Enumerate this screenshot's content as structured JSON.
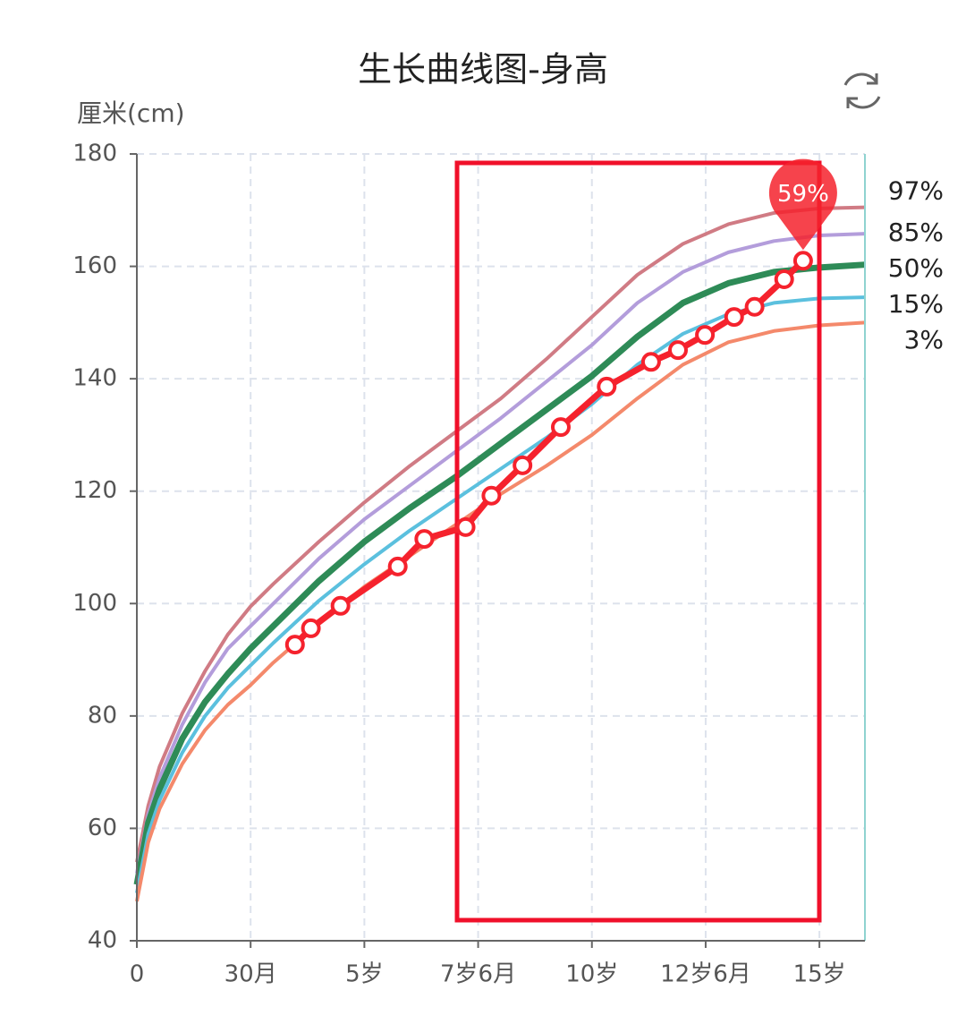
{
  "chart_data": {
    "type": "line",
    "title": "生长曲线图-身高",
    "y_label": "厘米(cm)",
    "x": [
      0,
      3,
      6,
      12,
      18,
      24,
      30,
      36,
      48,
      60,
      72,
      84,
      96,
      108,
      120,
      132,
      144,
      156,
      168,
      180,
      192
    ],
    "series": [
      {
        "name": "97%",
        "color": "#d07b84",
        "values": [
          54,
          64,
          71,
          80.5,
          88,
          94.5,
          99.5,
          103.5,
          111,
          118,
          124.5,
          130.5,
          136.5,
          143.5,
          151,
          158.5,
          164,
          167.5,
          169.5,
          170.3,
          170.5
        ]
      },
      {
        "name": "85%",
        "color": "#b39ddb",
        "values": [
          52,
          62.5,
          69,
          78.5,
          86,
          92,
          96,
          100,
          108,
          115,
          121,
          127,
          133,
          139.5,
          146,
          153.5,
          159,
          162.5,
          164.5,
          165.5,
          165.8
        ]
      },
      {
        "name": "50%",
        "color": "#2e8b57",
        "values": [
          50,
          61,
          67,
          76,
          82.5,
          87.5,
          92,
          96,
          104,
          111,
          117,
          122.5,
          128.5,
          134.5,
          140.5,
          147.5,
          153.5,
          157,
          159,
          159.8,
          160.3
        ]
      },
      {
        "name": "15%",
        "color": "#5bc0de",
        "values": [
          48.5,
          59,
          65,
          73.5,
          80,
          85,
          89,
          93,
          100.5,
          107,
          113,
          118.5,
          124,
          129.5,
          135.5,
          142.5,
          148,
          151.5,
          153.5,
          154.3,
          154.5
        ]
      },
      {
        "name": "3%",
        "color": "#f4896b",
        "values": [
          47,
          57.5,
          63.5,
          71.5,
          77.5,
          82,
          85.5,
          89.5,
          96.5,
          103,
          108.5,
          114,
          119.5,
          124.5,
          130,
          136.5,
          142.5,
          146.5,
          148.5,
          149.5,
          150
        ]
      }
    ],
    "measured": {
      "color": "#f5222d",
      "x": [
        41.7,
        45.9,
        53.7,
        68.8,
        75.8,
        86.7,
        93.5,
        101.7,
        111.8,
        123.9,
        135.6,
        142.7,
        149.8,
        157.5,
        162.9,
        170.7,
        175.7
      ],
      "values": [
        92.7,
        95.6,
        99.6,
        106.6,
        111.5,
        113.6,
        119.2,
        124.6,
        131.4,
        138.6,
        143.0,
        145.1,
        147.8,
        151.0,
        152.8,
        157.7,
        161.0
      ],
      "pin_label": "59%"
    },
    "xlim": [
      0,
      192
    ],
    "xticks": [
      {
        "value": 0,
        "label": "0"
      },
      {
        "value": 30,
        "label": "30月"
      },
      {
        "value": 60,
        "label": "5岁"
      },
      {
        "value": 90,
        "label": "7岁6月"
      },
      {
        "value": 120,
        "label": "10岁"
      },
      {
        "value": 150,
        "label": "12岁6月"
      },
      {
        "value": 180,
        "label": "15岁"
      }
    ],
    "ylim": [
      40,
      180
    ],
    "yticks": [
      40,
      60,
      80,
      100,
      120,
      140,
      160,
      180
    ],
    "grid": true
  }
}
